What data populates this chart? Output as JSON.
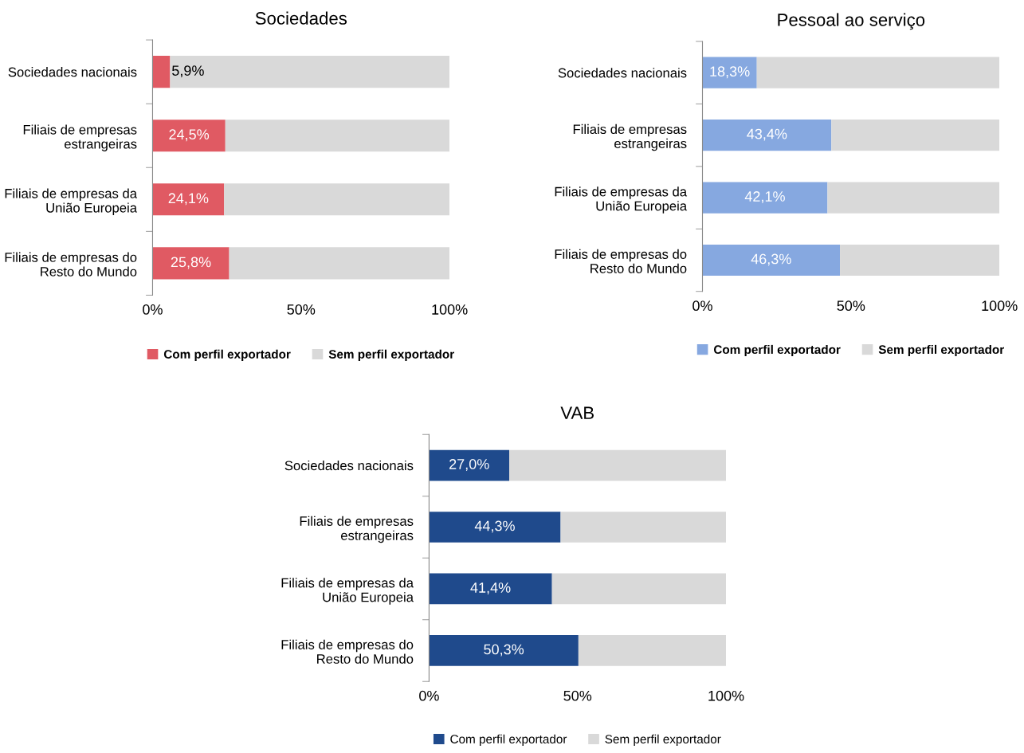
{
  "chart_data": [
    {
      "type": "bar",
      "title": "Sociedades",
      "orientation": "horizontal",
      "stacked": true,
      "legend": "bottom",
      "grid": false,
      "categories": [
        "Sociedades nacionais",
        "Filiais de empresas estrangeiras",
        "Filiais de empresas da União Europeia",
        "Filiais de empresas do Resto do Mundo"
      ],
      "xlim": [
        0,
        100
      ],
      "xticks": [
        {
          "value": 0,
          "label": "0%"
        },
        {
          "value": 50,
          "label": "50%"
        },
        {
          "value": 100,
          "label": "100%"
        }
      ],
      "series": [
        {
          "name": "Com perfil exportador",
          "color": "#e05a63",
          "values": [
            5.9,
            24.5,
            24.1,
            25.8
          ],
          "value_labels": [
            "5,9%",
            "24,5%",
            "24,1%",
            "25,8%"
          ]
        },
        {
          "name": "Sem perfil exportador",
          "color": "#d9d9d9",
          "values": [
            94.1,
            75.5,
            75.9,
            74.2
          ]
        }
      ]
    },
    {
      "type": "bar",
      "title": "Pessoal ao serviço",
      "orientation": "horizontal",
      "stacked": true,
      "legend": "bottom",
      "grid": false,
      "categories": [
        "Sociedades nacionais",
        "Filiais de empresas estrangeiras",
        "Filiais de empresas da União Europeia",
        "Filiais de empresas do Resto do Mundo"
      ],
      "xlim": [
        0,
        100
      ],
      "xticks": [
        {
          "value": 0,
          "label": "0%"
        },
        {
          "value": 50,
          "label": "50%"
        },
        {
          "value": 100,
          "label": "100%"
        }
      ],
      "series": [
        {
          "name": "Com perfil exportador",
          "color": "#86a8e0",
          "values": [
            18.3,
            43.4,
            42.1,
            46.3
          ],
          "value_labels": [
            "18,3%",
            "43,4%",
            "42,1%",
            "46,3%"
          ]
        },
        {
          "name": "Sem perfil exportador",
          "color": "#d9d9d9",
          "values": [
            81.7,
            56.6,
            57.9,
            53.7
          ]
        }
      ]
    },
    {
      "type": "bar",
      "title": "VAB",
      "orientation": "horizontal",
      "stacked": true,
      "legend": "bottom",
      "grid": false,
      "categories": [
        "Sociedades nacionais",
        "Filiais de empresas estrangeiras",
        "Filiais de empresas da União Europeia",
        "Filiais de empresas do Resto do Mundo"
      ],
      "xlim": [
        0,
        100
      ],
      "xticks": [
        {
          "value": 0,
          "label": "0%"
        },
        {
          "value": 50,
          "label": "50%"
        },
        {
          "value": 100,
          "label": "100%"
        }
      ],
      "series": [
        {
          "name": "Com perfil exportador",
          "color": "#1f4a8c",
          "values": [
            27.0,
            44.3,
            41.4,
            50.3
          ],
          "value_labels": [
            "27,0%",
            "44,3%",
            "41,4%",
            "50,3%"
          ]
        },
        {
          "name": "Sem perfil exportador",
          "color": "#d9d9d9",
          "values": [
            73.0,
            55.7,
            58.6,
            49.7
          ]
        }
      ]
    }
  ]
}
